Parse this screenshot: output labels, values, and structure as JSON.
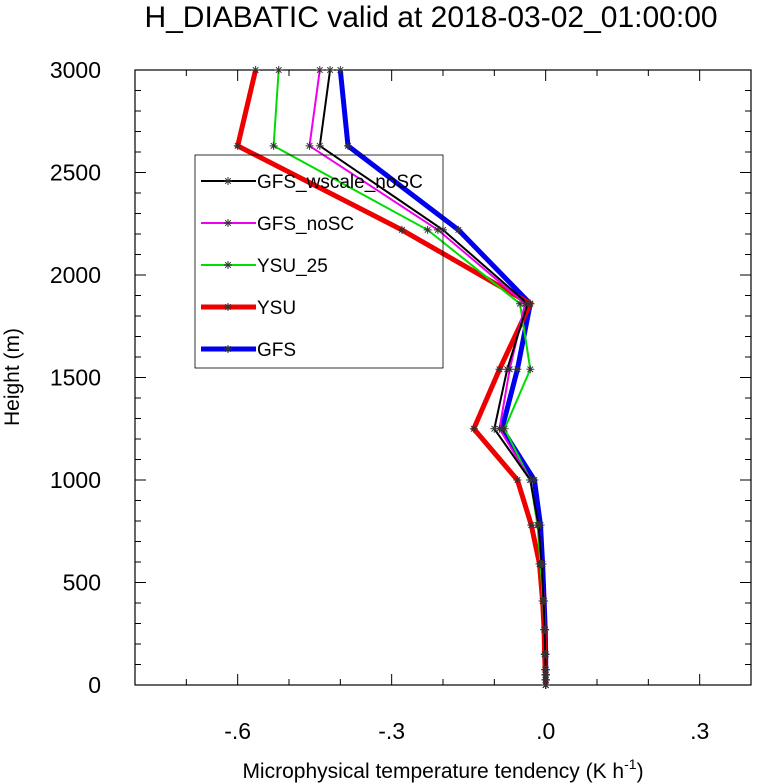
{
  "chart_data": {
    "type": "line",
    "title": "H_DIABATIC valid at 2018-03-02_01:00:00",
    "xlabel": "Microphysical temperature tendency (K h",
    "xlabel_sup": "-1",
    "xlabel_close": ")",
    "ylabel": "Height (m)",
    "xlim": [
      -0.8,
      0.4
    ],
    "ylim": [
      0,
      3000
    ],
    "xticks": [
      {
        "value": -0.6,
        "label": "-.6"
      },
      {
        "value": -0.3,
        "label": "-.3"
      },
      {
        "value": 0.0,
        "label": ".0"
      },
      {
        "value": 0.3,
        "label": ".3"
      }
    ],
    "yticks": [
      {
        "value": 0,
        "label": "0"
      },
      {
        "value": 500,
        "label": "500"
      },
      {
        "value": 1000,
        "label": "1000"
      },
      {
        "value": 1500,
        "label": "1500"
      },
      {
        "value": 2000,
        "label": "2000"
      },
      {
        "value": 2500,
        "label": "2500"
      },
      {
        "value": 3000,
        "label": "3000"
      }
    ],
    "legend_position": "upper-left",
    "grid": false,
    "series": [
      {
        "name": "GFS_wscale_noSC",
        "color": "#000000",
        "line_width": 2,
        "points": [
          {
            "x": 0.0,
            "y": 0
          },
          {
            "x": 0.0,
            "y": 25
          },
          {
            "x": 0.0,
            "y": 50
          },
          {
            "x": 0.0,
            "y": 75
          },
          {
            "x": -0.001,
            "y": 150
          },
          {
            "x": -0.002,
            "y": 270
          },
          {
            "x": -0.004,
            "y": 410
          },
          {
            "x": -0.008,
            "y": 590
          },
          {
            "x": -0.014,
            "y": 780
          },
          {
            "x": -0.03,
            "y": 1000
          },
          {
            "x": -0.1,
            "y": 1250
          },
          {
            "x": -0.075,
            "y": 1540
          },
          {
            "x": -0.035,
            "y": 1860
          },
          {
            "x": -0.2,
            "y": 2220
          },
          {
            "x": -0.44,
            "y": 2630
          },
          {
            "x": -0.42,
            "y": 3000
          }
        ]
      },
      {
        "name": "GFS_noSC",
        "color": "#ee00ee",
        "line_width": 2,
        "points": [
          {
            "x": 0.0,
            "y": 0
          },
          {
            "x": 0.0,
            "y": 25
          },
          {
            "x": 0.0,
            "y": 50
          },
          {
            "x": 0.0,
            "y": 75
          },
          {
            "x": -0.001,
            "y": 150
          },
          {
            "x": -0.002,
            "y": 270
          },
          {
            "x": -0.004,
            "y": 410
          },
          {
            "x": -0.008,
            "y": 590
          },
          {
            "x": -0.014,
            "y": 780
          },
          {
            "x": -0.03,
            "y": 1000
          },
          {
            "x": -0.09,
            "y": 1250
          },
          {
            "x": -0.07,
            "y": 1540
          },
          {
            "x": -0.04,
            "y": 1860
          },
          {
            "x": -0.21,
            "y": 2220
          },
          {
            "x": -0.46,
            "y": 2630
          },
          {
            "x": -0.44,
            "y": 3000
          }
        ]
      },
      {
        "name": "YSU_25",
        "color": "#00dd00",
        "line_width": 2,
        "points": [
          {
            "x": 0.0,
            "y": 0
          },
          {
            "x": 0.0,
            "y": 25
          },
          {
            "x": 0.0,
            "y": 50
          },
          {
            "x": 0.0,
            "y": 75
          },
          {
            "x": -0.001,
            "y": 150
          },
          {
            "x": -0.002,
            "y": 270
          },
          {
            "x": -0.005,
            "y": 410
          },
          {
            "x": -0.01,
            "y": 590
          },
          {
            "x": -0.016,
            "y": 780
          },
          {
            "x": -0.03,
            "y": 1000
          },
          {
            "x": -0.08,
            "y": 1250
          },
          {
            "x": -0.03,
            "y": 1540
          },
          {
            "x": -0.05,
            "y": 1860
          },
          {
            "x": -0.23,
            "y": 2220
          },
          {
            "x": -0.53,
            "y": 2630
          },
          {
            "x": -0.52,
            "y": 3000
          }
        ]
      },
      {
        "name": "YSU",
        "color": "#ee0000",
        "line_width": 5,
        "points": [
          {
            "x": 0.0,
            "y": 0
          },
          {
            "x": 0.0,
            "y": 25
          },
          {
            "x": 0.0,
            "y": 50
          },
          {
            "x": -0.001,
            "y": 75
          },
          {
            "x": -0.002,
            "y": 150
          },
          {
            "x": -0.003,
            "y": 270
          },
          {
            "x": -0.006,
            "y": 410
          },
          {
            "x": -0.012,
            "y": 590
          },
          {
            "x": -0.028,
            "y": 780
          },
          {
            "x": -0.055,
            "y": 1000
          },
          {
            "x": -0.14,
            "y": 1250
          },
          {
            "x": -0.09,
            "y": 1540
          },
          {
            "x": -0.03,
            "y": 1860
          },
          {
            "x": -0.28,
            "y": 2220
          },
          {
            "x": -0.6,
            "y": 2630
          },
          {
            "x": -0.565,
            "y": 3000
          }
        ]
      },
      {
        "name": "GFS",
        "color": "#0000ee",
        "line_width": 5,
        "points": [
          {
            "x": 0.0,
            "y": 0
          },
          {
            "x": 0.0,
            "y": 25
          },
          {
            "x": 0.0,
            "y": 50
          },
          {
            "x": 0.0,
            "y": 75
          },
          {
            "x": 0.0,
            "y": 150
          },
          {
            "x": -0.001,
            "y": 270
          },
          {
            "x": -0.003,
            "y": 410
          },
          {
            "x": -0.006,
            "y": 590
          },
          {
            "x": -0.01,
            "y": 780
          },
          {
            "x": -0.022,
            "y": 1000
          },
          {
            "x": -0.085,
            "y": 1250
          },
          {
            "x": -0.055,
            "y": 1540
          },
          {
            "x": -0.03,
            "y": 1860
          },
          {
            "x": -0.17,
            "y": 2220
          },
          {
            "x": -0.385,
            "y": 2630
          },
          {
            "x": -0.4,
            "y": 3000
          }
        ]
      }
    ]
  }
}
